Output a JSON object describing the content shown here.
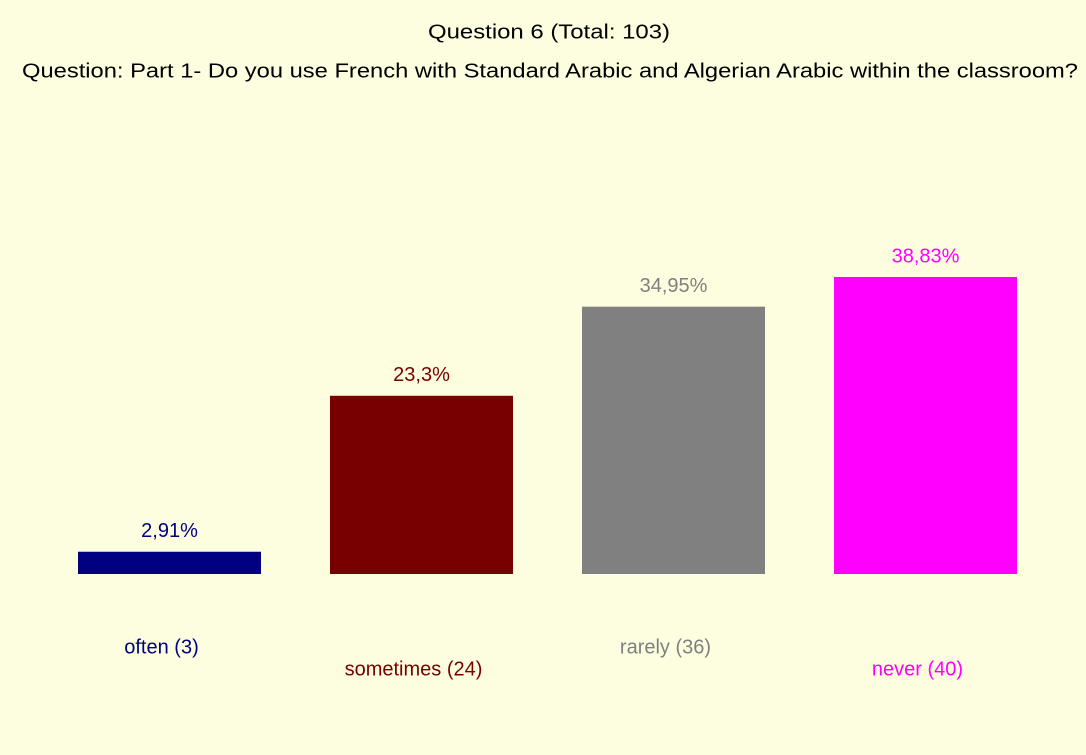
{
  "chart_data": {
    "type": "bar",
    "title": "Question 6 (Total: 103)",
    "subtitle": "Question: Part 1- Do you use French with Standard Arabic and Algerian Arabic within the classroom?",
    "categories": [
      "often (3)",
      "sometimes (24)",
      "rarely (36)",
      "never (40)"
    ],
    "values": [
      2.91,
      23.3,
      34.95,
      38.83
    ],
    "value_labels": [
      "2,91%",
      "23,3%",
      "34,95%",
      "38,83%"
    ],
    "colors": [
      "#000080",
      "#780000",
      "#808080",
      "#ff00ff"
    ]
  }
}
